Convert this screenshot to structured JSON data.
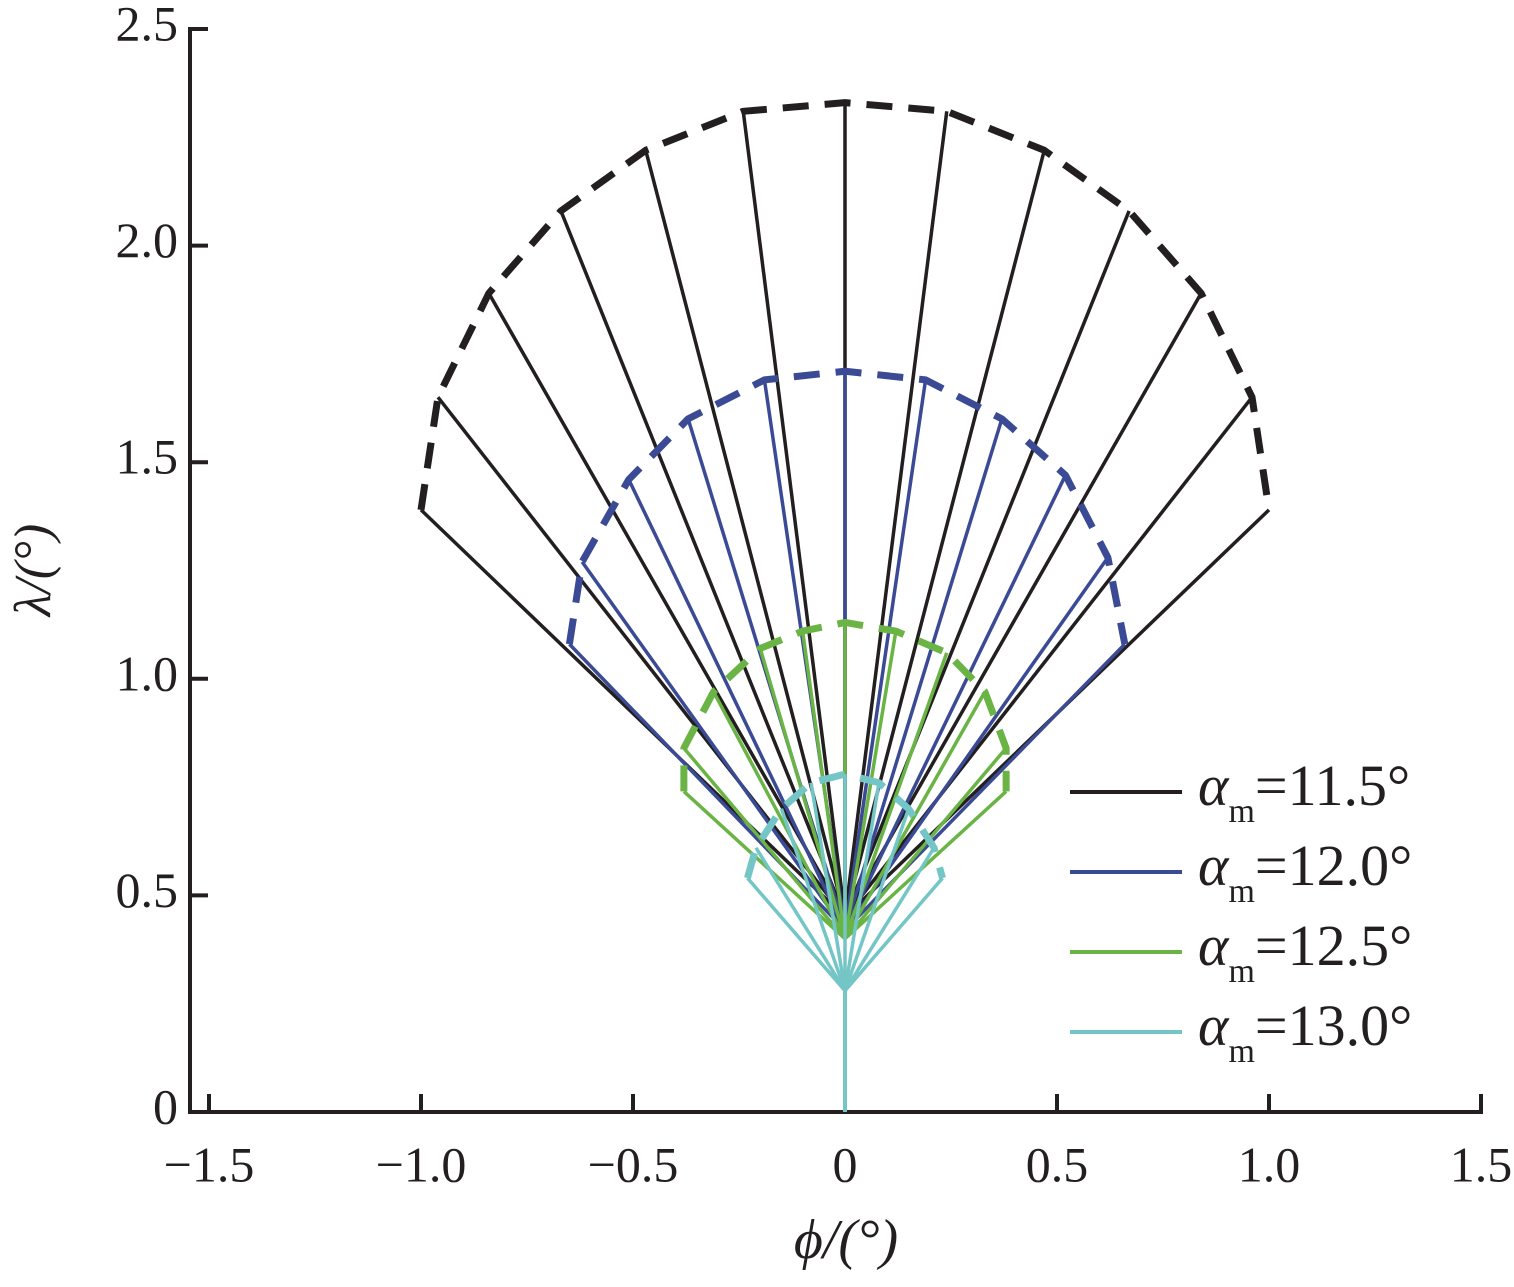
{
  "chart_data": {
    "type": "fan",
    "xlabel": "ϕ/(°)",
    "ylabel": "λ/(°)",
    "xlim": [
      -1.5,
      1.5
    ],
    "ylim": [
      0,
      2.5
    ],
    "xticks": [
      {
        "value": -1.5,
        "label": "−1.5"
      },
      {
        "value": -1,
        "label": "−1.0"
      },
      {
        "value": -0.5,
        "label": "−0.5"
      },
      0,
      0.5,
      {
        "value": 1,
        "label": "1.0"
      },
      1.5
    ],
    "yticks": [
      0,
      0.5,
      {
        "value": 1,
        "label": "1.0"
      },
      1.5,
      {
        "value": 2,
        "label": "2.0"
      },
      2.5
    ],
    "legend": "lower right",
    "series": [
      {
        "name": "αm=11.5°",
        "color": "#231f20",
        "origin": [
          0,
          0.45
        ],
        "x": [
          -1.0,
          -0.96,
          -0.84,
          -0.67,
          -0.47,
          -0.24,
          0,
          0.24,
          0.47,
          0.67,
          0.84,
          0.96,
          1.0
        ],
        "y": [
          1.39,
          1.65,
          1.89,
          2.08,
          2.22,
          2.31,
          2.33,
          2.31,
          2.22,
          2.08,
          1.89,
          1.65,
          1.39
        ]
      },
      {
        "name": "αm=12.0°",
        "color": "#3b4a95",
        "origin": [
          0,
          0.42
        ],
        "x": [
          -0.65,
          -0.62,
          -0.51,
          -0.37,
          -0.19,
          0,
          0.19,
          0.37,
          0.52,
          0.62,
          0.66
        ],
        "y": [
          1.08,
          1.27,
          1.46,
          1.6,
          1.69,
          1.71,
          1.69,
          1.6,
          1.47,
          1.28,
          1.08
        ]
      },
      {
        "name": "αm=12.5°",
        "color": "#6ab446",
        "origin": [
          0,
          0.4
        ],
        "x": [
          -0.38,
          -0.38,
          -0.31,
          -0.2,
          -0.1,
          0,
          0.12,
          0.24,
          0.33,
          0.38,
          0.38
        ],
        "y": [
          0.74,
          0.84,
          0.97,
          1.07,
          1.11,
          1.13,
          1.11,
          1.06,
          0.97,
          0.84,
          0.74
        ]
      },
      {
        "name": "αm=13.0°",
        "color": "#74c6c6",
        "origin": [
          0,
          0.28
        ],
        "stem": true,
        "x": [
          -0.23,
          -0.21,
          -0.15,
          -0.08,
          0,
          0.08,
          0.15,
          0.21,
          0.23
        ],
        "y": [
          0.54,
          0.61,
          0.7,
          0.76,
          0.78,
          0.76,
          0.7,
          0.61,
          0.54
        ]
      }
    ]
  }
}
